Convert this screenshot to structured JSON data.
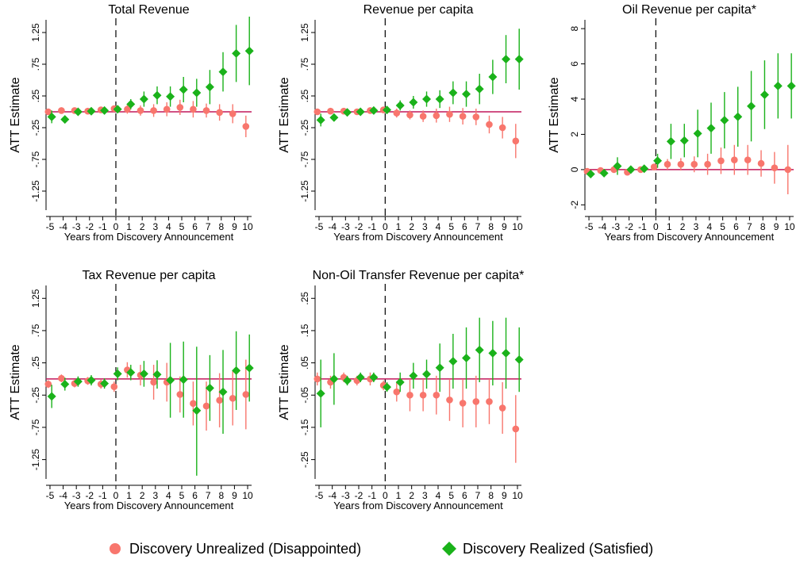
{
  "colors": {
    "unrealized": "#F8766D",
    "realized": "#1AB21A",
    "zero_line": "#C2185B",
    "dash_line": "#000000"
  },
  "legend": {
    "unrealized_label": "Discovery Unrealized (Disappointed)",
    "realized_label": "Discovery Realized (Satisfied)",
    "unrealized_icon": "circle-marker",
    "realized_icon": "diamond-marker"
  },
  "chart_data": [
    {
      "type": "scatter",
      "title": "Total Revenue",
      "xlabel": "Years from Discovery Announcement",
      "ylabel": "ATT Estimate",
      "xlim": [
        -5.3,
        10.3
      ],
      "ylim": [
        -1.55,
        1.45
      ],
      "yticks": [
        -1.25,
        -0.75,
        -0.25,
        0.25,
        0.75,
        1.25
      ],
      "ytick_labels": [
        "-1.25",
        "-.75",
        "-.25",
        ".25",
        ".75",
        "1.25"
      ],
      "xticks": [
        -5,
        -4,
        -3,
        -2,
        -1,
        0,
        1,
        2,
        3,
        4,
        5,
        6,
        7,
        8,
        9,
        10
      ],
      "vline": 0,
      "hline": 0,
      "grid": false,
      "series": [
        {
          "name": "Discovery Unrealized (Disappointed)",
          "marker": "circle",
          "x": [
            -5,
            -4,
            -3,
            -2,
            -1,
            0,
            1,
            2,
            3,
            4,
            5,
            6,
            7,
            8,
            9,
            10
          ],
          "y": [
            0.0,
            0.02,
            0.02,
            0.01,
            0.03,
            0.05,
            0.04,
            0.02,
            0.02,
            0.04,
            0.07,
            0.04,
            0.02,
            -0.01,
            -0.03,
            -0.23
          ],
          "lo": [
            -0.05,
            -0.02,
            -0.02,
            -0.03,
            -0.01,
            0.01,
            -0.03,
            -0.06,
            -0.08,
            -0.07,
            -0.05,
            -0.09,
            -0.09,
            -0.14,
            -0.18,
            -0.4
          ],
          "hi": [
            0.05,
            0.06,
            0.06,
            0.05,
            0.07,
            0.09,
            0.11,
            0.1,
            0.12,
            0.15,
            0.19,
            0.17,
            0.13,
            0.12,
            0.12,
            -0.06
          ]
        },
        {
          "name": "Discovery Realized (Satisfied)",
          "marker": "diamond",
          "x": [
            -5,
            -4,
            -3,
            -2,
            -1,
            0,
            1,
            2,
            3,
            4,
            5,
            6,
            7,
            8,
            9,
            10
          ],
          "y": [
            -0.08,
            -0.12,
            0.0,
            0.01,
            0.02,
            0.04,
            0.12,
            0.2,
            0.26,
            0.24,
            0.35,
            0.3,
            0.39,
            0.63,
            0.92,
            0.96
          ],
          "lo": [
            -0.18,
            -0.18,
            -0.05,
            -0.03,
            -0.02,
            0.0,
            0.04,
            0.08,
            0.12,
            0.08,
            0.15,
            0.08,
            0.12,
            0.32,
            0.47,
            0.42
          ],
          "hi": [
            0.02,
            -0.06,
            0.05,
            0.05,
            0.06,
            0.08,
            0.2,
            0.32,
            0.4,
            0.4,
            0.55,
            0.52,
            0.66,
            0.94,
            1.37,
            1.5
          ]
        }
      ]
    },
    {
      "type": "scatter",
      "title": "Revenue per capita",
      "xlabel": "Years from Discovery Announcement",
      "ylabel": "ATT Estimate",
      "xlim": [
        -5.3,
        10.3
      ],
      "ylim": [
        -1.55,
        1.45
      ],
      "yticks": [
        -1.25,
        -0.75,
        -0.25,
        0.25,
        0.75,
        1.25
      ],
      "ytick_labels": [
        "-1.25",
        "-.75",
        "-.25",
        ".25",
        ".75",
        "1.25"
      ],
      "xticks": [
        -5,
        -4,
        -3,
        -2,
        -1,
        0,
        1,
        2,
        3,
        4,
        5,
        6,
        7,
        8,
        9,
        10
      ],
      "vline": 0,
      "hline": 0,
      "grid": false,
      "series": [
        {
          "name": "Discovery Unrealized (Disappointed)",
          "marker": "circle",
          "x": [
            -5,
            -4,
            -3,
            -2,
            -1,
            0,
            1,
            2,
            3,
            4,
            5,
            6,
            7,
            8,
            9,
            10
          ],
          "y": [
            0.0,
            0.01,
            0.01,
            0.0,
            0.02,
            0.03,
            -0.02,
            -0.05,
            -0.07,
            -0.06,
            -0.04,
            -0.07,
            -0.08,
            -0.2,
            -0.25,
            -0.46
          ],
          "lo": [
            -0.04,
            -0.03,
            -0.03,
            -0.04,
            -0.02,
            -0.01,
            -0.09,
            -0.12,
            -0.16,
            -0.17,
            -0.16,
            -0.2,
            -0.21,
            -0.34,
            -0.42,
            -0.73
          ],
          "hi": [
            0.04,
            0.05,
            0.05,
            0.04,
            0.06,
            0.07,
            0.05,
            0.02,
            0.02,
            0.05,
            0.08,
            0.06,
            0.05,
            -0.06,
            -0.08,
            -0.19
          ]
        },
        {
          "name": "Discovery Realized (Satisfied)",
          "marker": "diamond",
          "x": [
            -5,
            -4,
            -3,
            -2,
            -1,
            0,
            1,
            2,
            3,
            4,
            5,
            6,
            7,
            8,
            9,
            10
          ],
          "y": [
            -0.13,
            -0.09,
            -0.01,
            0.0,
            0.02,
            0.03,
            0.1,
            0.15,
            0.2,
            0.2,
            0.3,
            0.28,
            0.36,
            0.55,
            0.83,
            0.83
          ],
          "lo": [
            -0.23,
            -0.15,
            -0.06,
            -0.04,
            -0.02,
            -0.01,
            0.02,
            0.05,
            0.08,
            0.06,
            0.12,
            0.08,
            0.12,
            0.28,
            0.45,
            0.35
          ],
          "hi": [
            -0.03,
            -0.03,
            0.04,
            0.04,
            0.06,
            0.07,
            0.18,
            0.25,
            0.32,
            0.34,
            0.48,
            0.48,
            0.6,
            0.82,
            1.21,
            1.31
          ]
        }
      ]
    },
    {
      "type": "scatter",
      "title": "Oil Revenue per capita*",
      "xlabel": "Years from Discovery Announcement",
      "ylabel": "ATT Estimate",
      "xlim": [
        -5.3,
        10.3
      ],
      "ylim": [
        -2.3,
        8.5
      ],
      "yticks": [
        -2,
        0,
        2,
        4,
        6,
        8
      ],
      "ytick_labels": [
        "-2",
        "0",
        "2",
        "4",
        "6",
        "8"
      ],
      "xticks": [
        -5,
        -4,
        -3,
        -2,
        -1,
        0,
        1,
        2,
        3,
        4,
        5,
        6,
        7,
        8,
        9,
        10
      ],
      "vline": 0,
      "hline": 0,
      "grid": false,
      "series": [
        {
          "name": "Discovery Unrealized (Disappointed)",
          "marker": "circle",
          "x": [
            -5,
            -4,
            -3,
            -2,
            -1,
            0,
            1,
            2,
            3,
            4,
            5,
            6,
            7,
            8,
            9,
            10
          ],
          "y": [
            -0.1,
            -0.05,
            0.0,
            -0.15,
            0.0,
            0.15,
            0.3,
            0.3,
            0.3,
            0.3,
            0.5,
            0.55,
            0.55,
            0.35,
            0.1,
            0.0
          ],
          "lo": [
            -0.2,
            -0.15,
            -0.1,
            -0.25,
            -0.1,
            0.05,
            0.0,
            -0.05,
            -0.15,
            -0.3,
            -0.25,
            -0.3,
            -0.3,
            -0.4,
            -0.8,
            -1.4
          ],
          "hi": [
            0.0,
            0.05,
            0.1,
            -0.05,
            0.1,
            0.25,
            0.6,
            0.65,
            0.75,
            0.9,
            1.25,
            1.4,
            1.4,
            1.1,
            1.0,
            1.4
          ]
        },
        {
          "name": "Discovery Realized (Satisfied)",
          "marker": "diamond",
          "x": [
            -5,
            -4,
            -3,
            -2,
            -1,
            0,
            1,
            2,
            3,
            4,
            5,
            6,
            7,
            8,
            9,
            10
          ],
          "y": [
            -0.25,
            -0.2,
            0.2,
            0.0,
            0.05,
            0.5,
            1.6,
            1.65,
            2.05,
            2.35,
            2.8,
            3.0,
            3.6,
            4.25,
            4.75,
            4.75
          ],
          "lo": [
            -0.35,
            -0.3,
            -0.3,
            -0.1,
            -0.05,
            0.1,
            0.6,
            0.7,
            0.7,
            0.9,
            1.2,
            1.3,
            1.6,
            2.3,
            2.9,
            2.9
          ],
          "hi": [
            -0.15,
            -0.1,
            0.7,
            0.1,
            0.15,
            0.9,
            2.6,
            2.6,
            3.4,
            3.8,
            4.4,
            4.7,
            5.6,
            6.2,
            6.6,
            6.6
          ]
        }
      ]
    },
    {
      "type": "scatter",
      "title": "Tax Revenue per capita",
      "xlabel": "Years from Discovery Announcement",
      "ylabel": "ATT Estimate",
      "xlim": [
        -5.3,
        10.3
      ],
      "ylim": [
        -1.55,
        1.45
      ],
      "yticks": [
        -1.25,
        -0.75,
        -0.25,
        0.25,
        0.75,
        1.25
      ],
      "ytick_labels": [
        "-1.25",
        "-.75",
        "-.25",
        ".25",
        ".75",
        "1.25"
      ],
      "xticks": [
        -5,
        -4,
        -3,
        -2,
        -1,
        0,
        1,
        2,
        3,
        4,
        5,
        6,
        7,
        8,
        9,
        10
      ],
      "vline": 0,
      "hline": 0,
      "grid": false,
      "series": [
        {
          "name": "Discovery Unrealized (Disappointed)",
          "marker": "circle",
          "x": [
            -5,
            -4,
            -3,
            -2,
            -1,
            0,
            1,
            2,
            3,
            4,
            5,
            6,
            7,
            8,
            9,
            10
          ],
          "y": [
            -0.08,
            0.01,
            -0.07,
            -0.03,
            -0.08,
            -0.12,
            0.14,
            0.06,
            -0.05,
            -0.05,
            -0.24,
            -0.38,
            -0.42,
            -0.33,
            -0.3,
            -0.24
          ],
          "lo": [
            -0.14,
            -0.05,
            -0.13,
            -0.09,
            -0.15,
            -0.2,
            0.02,
            -0.1,
            -0.32,
            -0.35,
            -0.52,
            -0.72,
            -0.8,
            -0.75,
            -0.72,
            -0.78
          ],
          "hi": [
            -0.02,
            0.07,
            -0.01,
            0.03,
            -0.01,
            -0.04,
            0.26,
            0.22,
            0.22,
            0.25,
            0.04,
            -0.04,
            -0.04,
            0.09,
            0.12,
            0.3
          ]
        },
        {
          "name": "Discovery Realized (Satisfied)",
          "marker": "diamond",
          "x": [
            -5,
            -4,
            -3,
            -2,
            -1,
            0,
            1,
            2,
            3,
            4,
            5,
            6,
            7,
            8,
            9,
            10
          ],
          "y": [
            -0.27,
            -0.08,
            -0.04,
            -0.02,
            -0.07,
            0.08,
            0.1,
            0.08,
            0.07,
            -0.02,
            -0.01,
            -0.49,
            -0.14,
            -0.2,
            0.13,
            0.17
          ],
          "lo": [
            -0.45,
            -0.18,
            -0.12,
            -0.1,
            -0.15,
            -0.02,
            -0.02,
            -0.12,
            -0.15,
            -0.6,
            -0.6,
            -1.5,
            -0.65,
            -0.85,
            -0.48,
            -0.35
          ],
          "hi": [
            -0.09,
            0.02,
            0.04,
            0.06,
            0.01,
            0.18,
            0.22,
            0.28,
            0.29,
            0.56,
            0.58,
            0.5,
            0.37,
            0.45,
            0.74,
            0.69
          ]
        }
      ]
    },
    {
      "type": "scatter",
      "title": "Non-Oil Transfer Revenue per capita*",
      "xlabel": "Years from Discovery Announcement",
      "ylabel": "ATT Estimate",
      "xlim": [
        -5.3,
        10.3
      ],
      "ylim": [
        -0.31,
        0.29
      ],
      "yticks": [
        -0.25,
        -0.15,
        -0.05,
        0.05,
        0.15,
        0.25
      ],
      "ytick_labels": [
        "-.25",
        "-.15",
        "-.05",
        ".05",
        ".15",
        ".25"
      ],
      "xticks": [
        -5,
        -4,
        -3,
        -2,
        -1,
        0,
        1,
        2,
        3,
        4,
        5,
        6,
        7,
        8,
        9,
        10
      ],
      "vline": 0,
      "hline": 0,
      "grid": false,
      "series": [
        {
          "name": "Discovery Unrealized (Disappointed)",
          "marker": "circle",
          "x": [
            -5,
            -4,
            -3,
            -2,
            -1,
            0,
            1,
            2,
            3,
            4,
            5,
            6,
            7,
            8,
            9,
            10
          ],
          "y": [
            0.0,
            -0.01,
            0.005,
            -0.005,
            0.0,
            -0.02,
            -0.04,
            -0.05,
            -0.05,
            -0.05,
            -0.065,
            -0.075,
            -0.07,
            -0.07,
            -0.09,
            -0.155
          ],
          "lo": [
            -0.02,
            -0.03,
            -0.01,
            -0.02,
            -0.02,
            -0.035,
            -0.07,
            -0.1,
            -0.1,
            -0.11,
            -0.13,
            -0.15,
            -0.15,
            -0.14,
            -0.17,
            -0.26
          ],
          "hi": [
            0.02,
            0.01,
            0.02,
            0.01,
            0.02,
            -0.005,
            -0.01,
            0.0,
            0.0,
            0.01,
            0.0,
            0.0,
            0.01,
            0.0,
            -0.01,
            -0.05
          ]
        },
        {
          "name": "Discovery Realized (Satisfied)",
          "marker": "diamond",
          "x": [
            -5,
            -4,
            -3,
            -2,
            -1,
            0,
            1,
            2,
            3,
            4,
            5,
            6,
            7,
            8,
            9,
            10
          ],
          "y": [
            -0.045,
            0.0,
            -0.005,
            0.005,
            0.005,
            -0.025,
            -0.01,
            0.01,
            0.015,
            0.035,
            0.055,
            0.065,
            0.09,
            0.08,
            0.08,
            0.06
          ],
          "lo": [
            -0.15,
            -0.08,
            -0.02,
            -0.01,
            -0.01,
            -0.04,
            -0.04,
            -0.03,
            -0.03,
            -0.04,
            -0.03,
            -0.03,
            -0.01,
            -0.02,
            -0.03,
            -0.04
          ],
          "hi": [
            0.06,
            0.08,
            0.01,
            0.02,
            0.02,
            -0.01,
            0.02,
            0.05,
            0.06,
            0.11,
            0.14,
            0.16,
            0.19,
            0.18,
            0.19,
            0.16
          ]
        }
      ]
    }
  ]
}
